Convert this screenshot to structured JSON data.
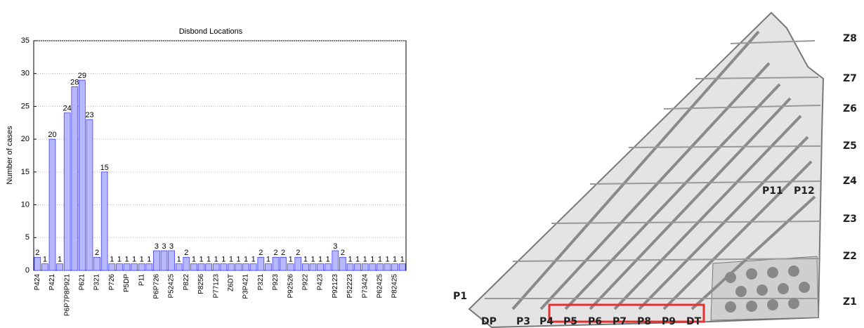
{
  "chart_data": {
    "type": "bar",
    "title": "Disbond Locations",
    "y_label": "Number of cases",
    "categories": [
      "P424",
      null,
      "P421",
      null,
      "P6P7P8P921",
      null,
      "P621",
      null,
      "P321",
      null,
      "P726",
      null,
      "P5DP",
      null,
      "P11",
      null,
      "P6P726",
      null,
      "P52425",
      null,
      "P822",
      null,
      "P8256",
      null,
      "P77123",
      null,
      "Z6DT",
      null,
      "P3P421",
      null,
      "P321",
      null,
      "P923",
      null,
      "P92526",
      null,
      "P922",
      null,
      "P423",
      null,
      "P92123",
      null,
      "P52223",
      null,
      "P73424",
      null,
      "P62425",
      null,
      "P82425",
      null
    ],
    "values": [
      2,
      1,
      20,
      1,
      24,
      28,
      29,
      23,
      2,
      15,
      1,
      1,
      1,
      1,
      1,
      1,
      3,
      3,
      3,
      1,
      2,
      1,
      1,
      1,
      1,
      1,
      1,
      1,
      1,
      1,
      2,
      1,
      2,
      2,
      1,
      2,
      1,
      1,
      1,
      1,
      3,
      2,
      1,
      1,
      1,
      1,
      1,
      1,
      1,
      1
    ],
    "color": "#b8b8ff",
    "edge_color": "#4040ff",
    "ylim": [
      0,
      35
    ],
    "yticks": [
      0,
      5,
      10,
      15,
      20,
      25,
      30,
      35
    ],
    "grid": true
  },
  "diagram": {
    "zone_labels": [
      "Z8",
      "Z7",
      "Z6",
      "Z5",
      "Z4",
      "Z3",
      "Z2",
      "Z1"
    ],
    "side_labels": [
      "P1",
      "P11",
      "P12"
    ],
    "bottom_labels": [
      "DP",
      "P3",
      "P4",
      "P5",
      "P6",
      "P7",
      "P8",
      "P9",
      "DT"
    ]
  }
}
